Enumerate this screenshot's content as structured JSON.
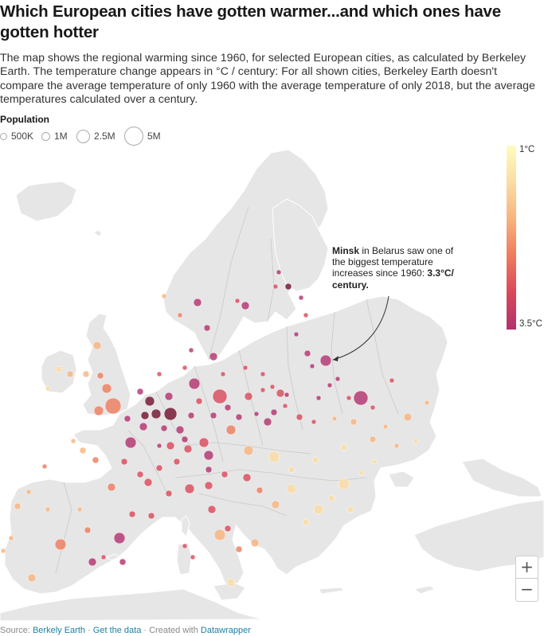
{
  "title": "Which European cities have gotten warmer...and which ones have gotten hotter",
  "description": "The map shows the regional warming since 1960, for selected European cities, as calculated by Berkeley Earth. The temperature change appears in °C / century: For all shown cities, Berkeley Earth doesn't compare the average temperature of only 1960 with the average temperature of only 2018, but the average temperatures calculated over a century.",
  "population_legend": {
    "title": "Population",
    "items": [
      {
        "label": "500K",
        "value": 500000
      },
      {
        "label": "1M",
        "value": 1000000
      },
      {
        "label": "2.5M",
        "value": 2500000
      },
      {
        "label": "5M",
        "value": 5000000
      }
    ]
  },
  "color_legend": {
    "min_label": "1°C",
    "max_label": "3.5°C",
    "min": 1,
    "max": 3.5,
    "colors": [
      "#fefcbf",
      "#fbdca3",
      "#f7b37d",
      "#ef7a5c",
      "#d9475a",
      "#b2316e",
      "#6f0f2a"
    ]
  },
  "annotation": {
    "city": "Minsk",
    "text_before": " in Belarus saw one of the biggest temperature increases since 1960: ",
    "value": "3.3°C/ century.",
    "text_after": ""
  },
  "zoom": {
    "in_label": "+",
    "out_label": "−"
  },
  "footer": {
    "source_label": "Source: ",
    "source_link": "Berkely Earth",
    "sep1": " · ",
    "data_link": "Get the data",
    "sep2": " · Created with ",
    "tool_link": "Datawrapper"
  }
}
